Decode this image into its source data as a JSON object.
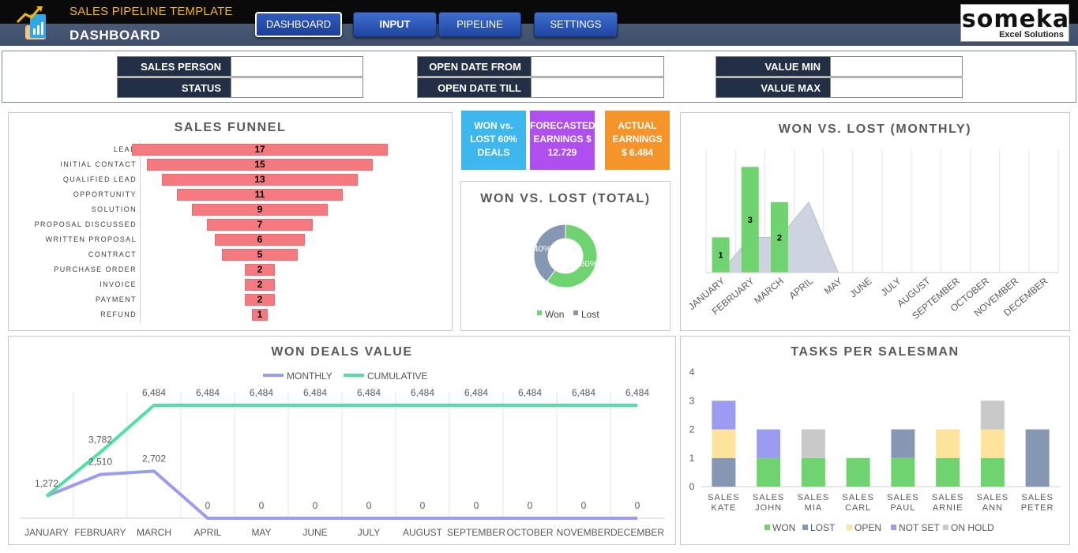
{
  "header": {
    "app_title": "SALES PIPELINE TEMPLATE",
    "page_title": "DASHBOARD",
    "nav": [
      "DASHBOARD",
      "INPUT",
      "PIPELINE",
      "SETTINGS"
    ],
    "brand_name": "someka",
    "brand_sub": "Excel Solutions"
  },
  "filters": {
    "sales_person": "SALES PERSON",
    "status": "STATUS",
    "open_date_from": "OPEN DATE FROM",
    "open_date_till": "OPEN DATE TILL",
    "value_min": "VALUE MIN",
    "value_max": "VALUE MAX"
  },
  "kpis": {
    "won_lost": [
      "WON vs.",
      "LOST 60%",
      "DEALS"
    ],
    "forecasted": [
      "FORECASTED",
      "EARNINGS $",
      "12.729"
    ],
    "actual": [
      "ACTUAL",
      "EARNINGS",
      "$ 6.484"
    ],
    "colors": [
      "#3db7ee",
      "#b04ff0",
      "#f5942a"
    ]
  },
  "funnel": {
    "title": "SALES FUNNEL",
    "stages": [
      "LEAD",
      "INITIAL CONTACT",
      "QUALIFIED LEAD",
      "OPPORTUNITY",
      "SOLUTION",
      "PROPOSAL DISCUSSED",
      "WRITTEN PROPOSAL",
      "CONTRACT",
      "PURCHASE ORDER",
      "INVOICE",
      "PAYMENT",
      "REFUND"
    ],
    "values": [
      17,
      15,
      13,
      11,
      9,
      7,
      6,
      5,
      2,
      2,
      2,
      1
    ]
  },
  "chart_data": [
    {
      "type": "pie",
      "title": "WON VS. LOST (TOTAL)",
      "categories": [
        "Won",
        "Lost"
      ],
      "values": [
        60,
        40
      ],
      "labels": [
        "60%",
        "40%"
      ],
      "colors": [
        "#6fd36f",
        "#8597b2"
      ],
      "legend": "bottom"
    },
    {
      "type": "bar",
      "title": "WON VS. LOST (MONTHLY)",
      "categories": [
        "JANUARY",
        "FEBRUARY",
        "MARCH",
        "APRIL",
        "MAY",
        "JUNE",
        "JULY",
        "AUGUST",
        "SEPTEMBER",
        "OCTOBER",
        "NOVEMBER",
        "DECEMBER"
      ],
      "series": [
        {
          "values": [
            1,
            3,
            2,
            0,
            0,
            0,
            0,
            0,
            0,
            0,
            0,
            0
          ],
          "labels": [
            "1",
            "3",
            "2"
          ],
          "color": "#6fd36f"
        },
        {
          "values": [
            0,
            1,
            1,
            2,
            0,
            0,
            0,
            0,
            0,
            0,
            0,
            0
          ],
          "color": "#cdd3df"
        }
      ],
      "ylim": [
        0,
        3.5
      ]
    },
    {
      "type": "line",
      "title": "WON DEALS VALUE",
      "categories": [
        "JANUARY",
        "FEBRUARY",
        "MARCH",
        "APRIL",
        "MAY",
        "JUNE",
        "JULY",
        "AUGUST",
        "SEPTEMBER",
        "OCTOBER",
        "NOVEMBER",
        "DECEMBER"
      ],
      "series": [
        {
          "name": "MONTHLY",
          "values": [
            1272,
            2510,
            2702,
            0,
            0,
            0,
            0,
            0,
            0,
            0,
            0,
            0
          ],
          "labels": [
            "1,272",
            "2,510",
            "2,702",
            "0",
            "0",
            "0",
            "0",
            "0",
            "0",
            "0",
            "0",
            "0"
          ],
          "color": "#9b9bf2"
        },
        {
          "name": "CUMULATIVE",
          "values": [
            1272,
            3782,
            6484,
            6484,
            6484,
            6484,
            6484,
            6484,
            6484,
            6484,
            6484,
            6484
          ],
          "labels": [
            "",
            "3,782",
            "6,484",
            "6,484",
            "6,484",
            "6,484",
            "6,484",
            "6,484",
            "6,484",
            "6,484",
            "6,484",
            "6,484"
          ],
          "color": "#4fe0a4"
        }
      ],
      "ylim": [
        0,
        6900
      ],
      "legend": "top"
    },
    {
      "type": "bar",
      "title": "TASKS PER SALESMAN",
      "stacked": true,
      "categories": [
        "SALES KATE",
        "SALES JOHN",
        "SALES MIA",
        "SALES CARL",
        "SALES PAUL",
        "SALES ARNIE",
        "SALES ANN",
        "SALES PETER"
      ],
      "series": [
        {
          "name": "WON",
          "values": [
            0,
            1,
            1,
            1,
            1,
            1,
            1,
            0
          ],
          "color": "#6fd36f"
        },
        {
          "name": "LOST",
          "values": [
            1,
            0,
            0,
            0,
            1,
            0,
            0,
            2
          ],
          "color": "#8597b2"
        },
        {
          "name": "OPEN",
          "values": [
            1,
            0,
            0,
            0,
            0,
            1,
            1,
            0
          ],
          "color": "#fde49a"
        },
        {
          "name": "NOT SET",
          "values": [
            1,
            1,
            0,
            0,
            0,
            0,
            0,
            0
          ],
          "color": "#9b9bf2"
        },
        {
          "name": "ON HOLD",
          "values": [
            0,
            0,
            1,
            0,
            0,
            0,
            1,
            0
          ],
          "color": "#c9c9c9"
        }
      ],
      "yticks": [
        "0",
        "1",
        "2",
        "3",
        "4"
      ],
      "ylim": [
        0,
        4
      ],
      "legend": "bottom"
    }
  ]
}
